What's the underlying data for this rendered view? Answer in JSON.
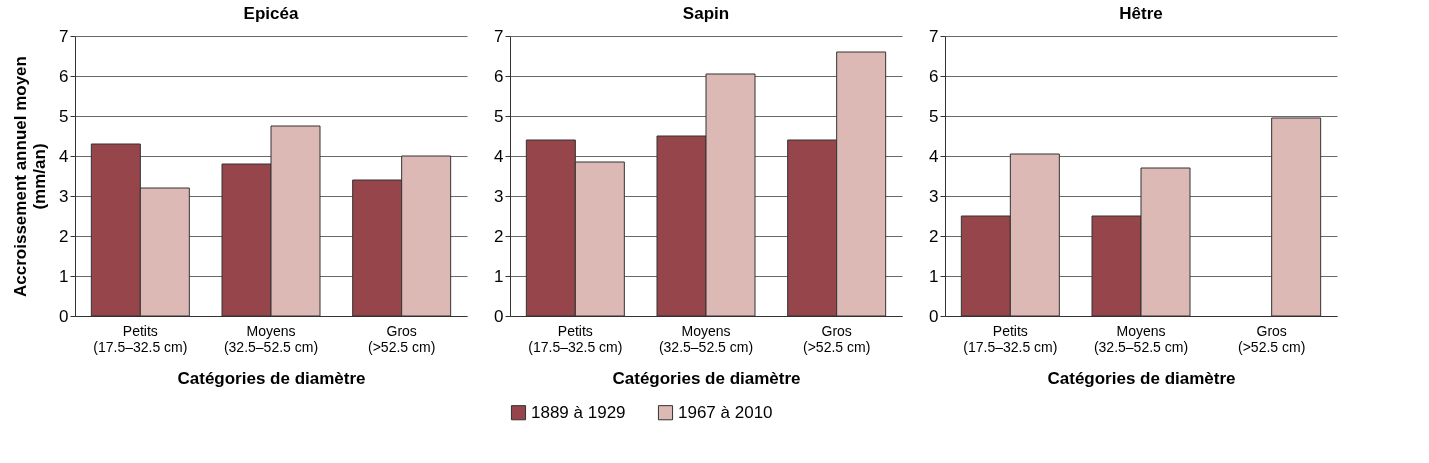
{
  "chart_data": [
    {
      "type": "bar",
      "title": "Epicéa",
      "xlabel": "Catégories de diamètre",
      "ylabel": "Accroissement annuel moyen\n(mm/an)",
      "categories": [
        "Petits\n(17.5–32.5 cm)",
        "Moyens\n(32.5–52.5 cm)",
        "Gros\n(>52.5 cm)"
      ],
      "series": [
        {
          "color": "#96454a",
          "values": [
            4.3,
            3.8,
            3.4
          ]
        },
        {
          "color": "#dcb9b4",
          "values": [
            3.2,
            4.75,
            4.0
          ]
        }
      ],
      "ylim": [
        0,
        7
      ],
      "yticks": [
        0,
        1,
        2,
        3,
        4,
        5,
        6,
        7
      ],
      "grid": "y"
    },
    {
      "type": "bar",
      "title": "Sapin",
      "xlabel": "Catégories de diamètre",
      "categories": [
        "Petits\n(17.5–32.5 cm)",
        "Moyens\n(32.5–52.5 cm)",
        "Gros\n(>52.5 cm)"
      ],
      "series": [
        {
          "name": "1889 à 1929",
          "color": "#96454a",
          "values": [
            4.4,
            4.5,
            4.4
          ]
        },
        {
          "name": "1967 à 2010",
          "color": "#dcb9b4",
          "values": [
            3.85,
            6.05,
            6.6
          ]
        }
      ],
      "ylim": [
        0,
        7
      ],
      "yticks": [
        0,
        1,
        2,
        3,
        4,
        5,
        6,
        7
      ],
      "grid": "y",
      "legend": "bottom"
    },
    {
      "type": "bar",
      "title": "Hêtre",
      "xlabel": "Catégories de diamètre",
      "categories": [
        "Petits\n(17.5–32.5 cm)",
        "Moyens\n(32.5–52.5 cm)",
        "Gros\n(>52.5 cm)"
      ],
      "series": [
        {
          "color": "#96454a",
          "values": [
            2.5,
            2.5,
            null
          ]
        },
        {
          "color": "#dcb9b4",
          "values": [
            4.05,
            3.7,
            4.95
          ]
        }
      ],
      "ylim": [
        0,
        7
      ],
      "yticks": [
        0,
        1,
        2,
        3,
        4,
        5,
        6,
        7
      ],
      "grid": "y"
    }
  ]
}
